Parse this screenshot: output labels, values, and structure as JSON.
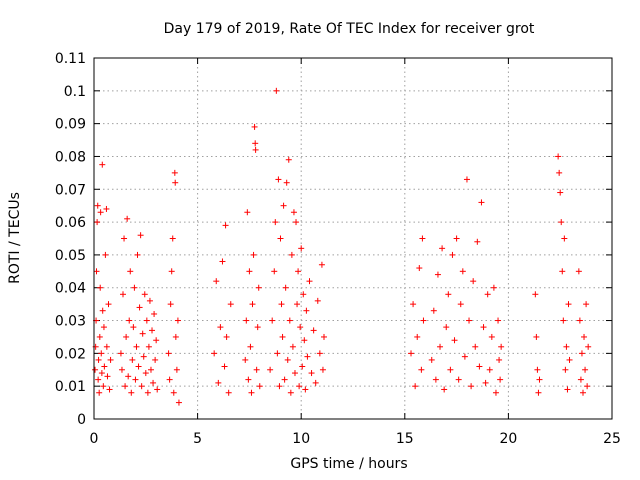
{
  "chart_data": {
    "type": "scatter",
    "title": "Day 179 of 2019, Rate Of TEC Index for receiver grot",
    "xlabel": "GPS time / hours",
    "ylabel": "ROTI / TECUs",
    "xlim": [
      0,
      25
    ],
    "ylim": [
      0,
      0.11
    ],
    "xticks": [
      "0",
      "5",
      "10",
      "15",
      "20",
      "25"
    ],
    "yticks": [
      "0",
      "0.01",
      "0.02",
      "0.03",
      "0.04",
      "0.05",
      "0.06",
      "0.07",
      "0.08",
      "0.09",
      "0.1",
      "0.11"
    ],
    "grid": true,
    "marker": "+",
    "color": "#ff0000",
    "series": [
      {
        "points": [
          [
            0.05,
            0.015
          ],
          [
            0.08,
            0.022
          ],
          [
            0.1,
            0.03
          ],
          [
            0.12,
            0.045
          ],
          [
            0.15,
            0.06
          ],
          [
            0.18,
            0.065
          ],
          [
            0.2,
            0.012
          ],
          [
            0.22,
            0.018
          ],
          [
            0.25,
            0.008
          ],
          [
            0.28,
            0.025
          ],
          [
            0.3,
            0.04
          ],
          [
            0.32,
            0.063
          ],
          [
            0.35,
            0.02
          ],
          [
            0.38,
            0.014
          ],
          [
            0.4,
            0.0775
          ],
          [
            0.42,
            0.033
          ],
          [
            0.45,
            0.01
          ],
          [
            0.48,
            0.028
          ],
          [
            0.5,
            0.016
          ],
          [
            0.55,
            0.05
          ],
          [
            0.6,
            0.064
          ],
          [
            0.62,
            0.022
          ],
          [
            0.65,
            0.013
          ],
          [
            0.7,
            0.035
          ],
          [
            0.75,
            0.009
          ],
          [
            0.8,
            0.018
          ],
          [
            1.3,
            0.02
          ],
          [
            1.35,
            0.015
          ],
          [
            1.4,
            0.038
          ],
          [
            1.45,
            0.055
          ],
          [
            1.5,
            0.01
          ],
          [
            1.55,
            0.025
          ],
          [
            1.6,
            0.061
          ],
          [
            1.65,
            0.013
          ],
          [
            1.7,
            0.03
          ],
          [
            1.75,
            0.045
          ],
          [
            1.8,
            0.008
          ],
          [
            1.85,
            0.018
          ],
          [
            1.9,
            0.028
          ],
          [
            1.95,
            0.04
          ],
          [
            2.0,
            0.012
          ],
          [
            2.05,
            0.022
          ],
          [
            2.1,
            0.05
          ],
          [
            2.15,
            0.016
          ],
          [
            2.2,
            0.034
          ],
          [
            2.25,
            0.056
          ],
          [
            2.3,
            0.01
          ],
          [
            2.35,
            0.026
          ],
          [
            2.4,
            0.019
          ],
          [
            2.45,
            0.038
          ],
          [
            2.5,
            0.014
          ],
          [
            2.55,
            0.03
          ],
          [
            2.6,
            0.008
          ],
          [
            2.65,
            0.022
          ],
          [
            2.7,
            0.036
          ],
          [
            2.75,
            0.015
          ],
          [
            2.8,
            0.027
          ],
          [
            2.85,
            0.011
          ],
          [
            2.9,
            0.032
          ],
          [
            2.95,
            0.018
          ],
          [
            3.0,
            0.024
          ],
          [
            3.05,
            0.009
          ],
          [
            3.6,
            0.02
          ],
          [
            3.65,
            0.012
          ],
          [
            3.7,
            0.035
          ],
          [
            3.75,
            0.045
          ],
          [
            3.8,
            0.055
          ],
          [
            3.85,
            0.008
          ],
          [
            3.9,
            0.075
          ],
          [
            3.92,
            0.072
          ],
          [
            3.95,
            0.025
          ],
          [
            4.0,
            0.015
          ],
          [
            4.05,
            0.03
          ],
          [
            4.1,
            0.005
          ],
          [
            5.8,
            0.02
          ],
          [
            5.9,
            0.042
          ],
          [
            6.0,
            0.011
          ],
          [
            6.1,
            0.028
          ],
          [
            6.2,
            0.048
          ],
          [
            6.3,
            0.016
          ],
          [
            6.35,
            0.059
          ],
          [
            6.4,
            0.025
          ],
          [
            6.5,
            0.008
          ],
          [
            6.6,
            0.035
          ],
          [
            7.3,
            0.018
          ],
          [
            7.35,
            0.03
          ],
          [
            7.4,
            0.063
          ],
          [
            7.45,
            0.012
          ],
          [
            7.5,
            0.045
          ],
          [
            7.55,
            0.022
          ],
          [
            7.6,
            0.008
          ],
          [
            7.65,
            0.035
          ],
          [
            7.7,
            0.05
          ],
          [
            7.75,
            0.089
          ],
          [
            7.78,
            0.084
          ],
          [
            7.8,
            0.082
          ],
          [
            7.85,
            0.015
          ],
          [
            7.9,
            0.028
          ],
          [
            7.95,
            0.04
          ],
          [
            8.0,
            0.01
          ],
          [
            8.5,
            0.015
          ],
          [
            8.6,
            0.03
          ],
          [
            8.7,
            0.045
          ],
          [
            8.75,
            0.06
          ],
          [
            8.8,
            0.1
          ],
          [
            8.85,
            0.02
          ],
          [
            8.9,
            0.073
          ],
          [
            8.95,
            0.01
          ],
          [
            9.0,
            0.055
          ],
          [
            9.05,
            0.035
          ],
          [
            9.1,
            0.025
          ],
          [
            9.15,
            0.065
          ],
          [
            9.2,
            0.012
          ],
          [
            9.25,
            0.04
          ],
          [
            9.3,
            0.072
          ],
          [
            9.35,
            0.018
          ],
          [
            9.4,
            0.079
          ],
          [
            9.45,
            0.03
          ],
          [
            9.5,
            0.008
          ],
          [
            9.55,
            0.05
          ],
          [
            9.6,
            0.022
          ],
          [
            9.65,
            0.063
          ],
          [
            9.7,
            0.014
          ],
          [
            9.75,
            0.06
          ],
          [
            9.8,
            0.035
          ],
          [
            9.85,
            0.045
          ],
          [
            9.9,
            0.01
          ],
          [
            9.95,
            0.028
          ],
          [
            10.0,
            0.052
          ],
          [
            10.05,
            0.016
          ],
          [
            10.1,
            0.038
          ],
          [
            10.15,
            0.024
          ],
          [
            10.2,
            0.009
          ],
          [
            10.25,
            0.033
          ],
          [
            10.3,
            0.019
          ],
          [
            10.4,
            0.042
          ],
          [
            10.5,
            0.014
          ],
          [
            10.6,
            0.027
          ],
          [
            10.7,
            0.011
          ],
          [
            10.8,
            0.036
          ],
          [
            10.9,
            0.02
          ],
          [
            11.0,
            0.047
          ],
          [
            11.05,
            0.015
          ],
          [
            11.1,
            0.025
          ],
          [
            15.3,
            0.02
          ],
          [
            15.4,
            0.035
          ],
          [
            15.5,
            0.01
          ],
          [
            15.6,
            0.025
          ],
          [
            15.7,
            0.046
          ],
          [
            15.8,
            0.015
          ],
          [
            15.85,
            0.055
          ],
          [
            15.9,
            0.03
          ],
          [
            16.3,
            0.018
          ],
          [
            16.4,
            0.033
          ],
          [
            16.5,
            0.012
          ],
          [
            16.6,
            0.044
          ],
          [
            16.7,
            0.022
          ],
          [
            16.8,
            0.052
          ],
          [
            16.9,
            0.009
          ],
          [
            17.0,
            0.028
          ],
          [
            17.1,
            0.038
          ],
          [
            17.2,
            0.015
          ],
          [
            17.3,
            0.05
          ],
          [
            17.4,
            0.024
          ],
          [
            17.5,
            0.055
          ],
          [
            17.6,
            0.012
          ],
          [
            17.7,
            0.035
          ],
          [
            17.8,
            0.045
          ],
          [
            17.9,
            0.019
          ],
          [
            18.0,
            0.073
          ],
          [
            18.1,
            0.03
          ],
          [
            18.2,
            0.01
          ],
          [
            18.3,
            0.042
          ],
          [
            18.4,
            0.022
          ],
          [
            18.5,
            0.054
          ],
          [
            18.6,
            0.016
          ],
          [
            18.7,
            0.066
          ],
          [
            18.8,
            0.028
          ],
          [
            18.9,
            0.011
          ],
          [
            19.0,
            0.038
          ],
          [
            19.1,
            0.015
          ],
          [
            19.2,
            0.025
          ],
          [
            19.3,
            0.04
          ],
          [
            19.4,
            0.008
          ],
          [
            19.5,
            0.03
          ],
          [
            19.55,
            0.018
          ],
          [
            19.6,
            0.012
          ],
          [
            19.65,
            0.022
          ],
          [
            21.3,
            0.038
          ],
          [
            21.35,
            0.025
          ],
          [
            21.4,
            0.015
          ],
          [
            21.45,
            0.008
          ],
          [
            21.5,
            0.012
          ],
          [
            22.4,
            0.08
          ],
          [
            22.45,
            0.075
          ],
          [
            22.5,
            0.069
          ],
          [
            22.55,
            0.06
          ],
          [
            22.6,
            0.045
          ],
          [
            22.65,
            0.03
          ],
          [
            22.7,
            0.055
          ],
          [
            22.75,
            0.015
          ],
          [
            22.8,
            0.022
          ],
          [
            22.85,
            0.009
          ],
          [
            22.9,
            0.035
          ],
          [
            22.95,
            0.018
          ],
          [
            23.4,
            0.045
          ],
          [
            23.45,
            0.03
          ],
          [
            23.5,
            0.012
          ],
          [
            23.55,
            0.02
          ],
          [
            23.6,
            0.008
          ],
          [
            23.65,
            0.025
          ],
          [
            23.7,
            0.015
          ],
          [
            23.75,
            0.035
          ],
          [
            23.8,
            0.01
          ],
          [
            23.85,
            0.022
          ]
        ]
      }
    ]
  }
}
